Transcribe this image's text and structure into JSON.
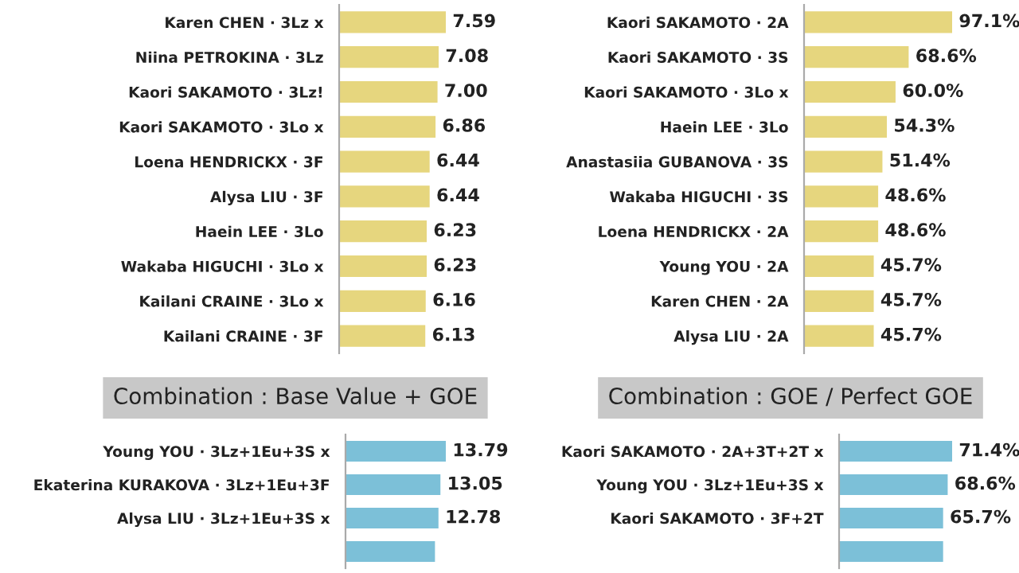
{
  "chart_data": [
    {
      "type": "bar",
      "orientation": "horizontal",
      "color": "#e6d67e",
      "tick_labels": "y",
      "categories": [
        "Karen CHEN · 3Lz x",
        "Niina PETROKINA · 3Lz",
        "Kaori SAKAMOTO · 3Lz!",
        "Kaori SAKAMOTO · 3Lo x",
        "Loena HENDRICKX · 3F",
        "Alysa LIU · 3F",
        "Haein LEE · 3Lo",
        "Wakaba HIGUCHI · 3Lo x",
        "Kailani CRAINE · 3Lo x",
        "Kailani CRAINE · 3F"
      ],
      "values": [
        7.59,
        7.08,
        7.0,
        6.86,
        6.44,
        6.44,
        6.23,
        6.23,
        6.16,
        6.13
      ],
      "value_labels": [
        "7.59",
        "7.08",
        "7.00",
        "6.86",
        "6.44",
        "6.44",
        "6.23",
        "6.23",
        "6.16",
        "6.13"
      ]
    },
    {
      "type": "bar",
      "orientation": "horizontal",
      "color": "#e6d67e",
      "tick_labels": "y",
      "categories": [
        "Kaori SAKAMOTO · 2A",
        "Kaori SAKAMOTO · 3S",
        "Kaori SAKAMOTO · 3Lo x",
        "Haein LEE · 3Lo",
        "Anastasiia GUBANOVA · 3S",
        "Wakaba HIGUCHI · 3S",
        "Loena HENDRICKX · 2A",
        "Young YOU · 2A",
        "Karen CHEN · 2A",
        "Alysa LIU · 2A"
      ],
      "values": [
        97.1,
        68.6,
        60.0,
        54.3,
        51.4,
        48.6,
        48.6,
        45.7,
        45.7,
        45.7
      ],
      "value_labels": [
        "97.1%",
        "68.6%",
        "60.0%",
        "54.3%",
        "51.4%",
        "48.6%",
        "48.6%",
        "45.7%",
        "45.7%",
        "45.7%"
      ]
    },
    {
      "type": "bar",
      "orientation": "horizontal",
      "color": "#7cc0d8",
      "tick_labels": "y",
      "title": "Combination : Base Value + GOE",
      "categories": [
        "Young YOU · 3Lz+1Eu+3S x",
        "Ekaterina KURAKOVA · 3Lz+1Eu+3F",
        "Alysa LIU · 3Lz+1Eu+3S x",
        null
      ],
      "values": [
        13.79,
        13.05,
        12.78,
        12.3
      ],
      "value_labels": [
        "13.79",
        "13.05",
        "12.78",
        null
      ]
    },
    {
      "type": "bar",
      "orientation": "horizontal",
      "color": "#7cc0d8",
      "tick_labels": "y",
      "title": "Combination : GOE / Perfect GOE",
      "categories": [
        "Kaori SAKAMOTO · 2A+3T+2T x",
        "Young YOU · 3Lz+1Eu+3S x",
        "Kaori SAKAMOTO · 3F+2T",
        null
      ],
      "values": [
        71.4,
        68.6,
        65.7,
        65.7
      ],
      "value_labels": [
        "71.4%",
        "68.6%",
        "65.7%",
        null
      ]
    }
  ]
}
